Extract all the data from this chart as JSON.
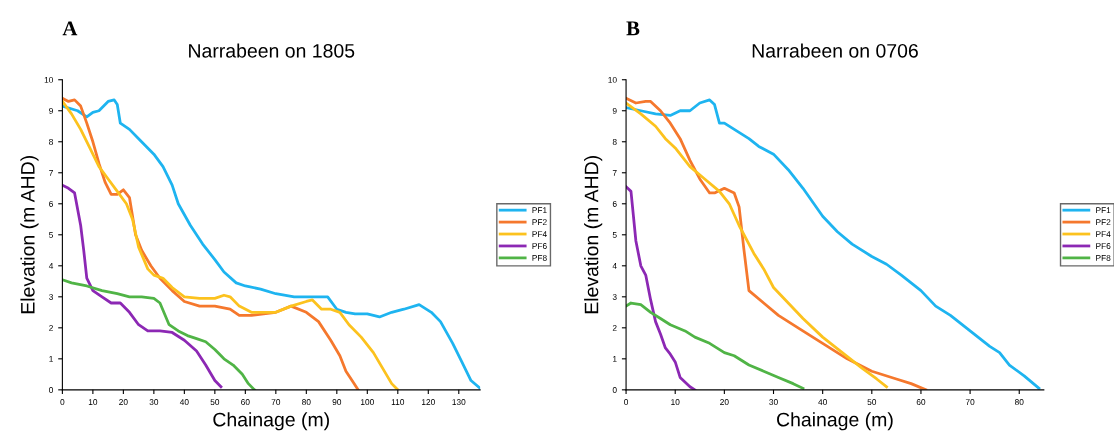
{
  "chart_data": [
    {
      "type": "line",
      "title": "Narrabeen on 1805",
      "xlabel": "Chainage (m)",
      "ylabel": "Elevation (m AHD)",
      "annotations": [
        "A"
      ],
      "legend": "right",
      "grid": false,
      "xlim": [
        0,
        137
      ],
      "xticks": [
        0,
        10,
        20,
        30,
        40,
        50,
        60,
        70,
        80,
        90,
        100,
        110,
        120,
        130
      ],
      "ylim": [
        0,
        10
      ],
      "yticks": [
        0,
        1,
        2,
        3,
        4,
        5,
        6,
        7,
        8,
        9,
        10
      ],
      "series": [
        {
          "name": "PF1",
          "color": "#1eb4f0",
          "x": [
            0,
            5,
            8,
            10,
            12,
            15,
            17,
            18,
            19,
            22,
            25,
            30,
            33,
            36,
            38,
            42,
            46,
            50,
            53,
            57,
            60,
            65,
            70,
            76,
            80,
            85,
            87,
            90,
            93,
            96,
            100,
            104,
            108,
            112,
            117,
            121,
            124,
            128,
            131,
            134,
            137
          ],
          "values": [
            9.15,
            9.0,
            8.8,
            8.95,
            9.0,
            9.3,
            9.35,
            9.2,
            8.6,
            8.4,
            8.1,
            7.6,
            7.2,
            6.6,
            6.0,
            5.3,
            4.7,
            4.2,
            3.8,
            3.45,
            3.35,
            3.25,
            3.1,
            3.0,
            3.0,
            3.0,
            3.0,
            2.6,
            2.5,
            2.45,
            2.45,
            2.35,
            2.5,
            2.6,
            2.75,
            2.5,
            2.2,
            1.5,
            0.9,
            0.3,
            0.05
          ]
        },
        {
          "name": "PF2",
          "color": "#f5782d",
          "x": [
            0,
            2,
            4,
            6,
            8,
            10,
            12,
            14,
            16,
            18,
            20,
            22,
            24,
            26,
            29,
            32,
            36,
            40,
            45,
            50,
            55,
            58,
            62,
            66,
            70,
            75,
            80,
            84,
            88,
            91,
            93,
            95,
            97
          ],
          "values": [
            9.4,
            9.3,
            9.35,
            9.15,
            8.6,
            8.0,
            7.3,
            6.7,
            6.3,
            6.3,
            6.45,
            6.2,
            5.0,
            4.5,
            4.0,
            3.6,
            3.2,
            2.85,
            2.7,
            2.7,
            2.6,
            2.4,
            2.4,
            2.45,
            2.5,
            2.7,
            2.5,
            2.2,
            1.6,
            1.1,
            0.6,
            0.3,
            0.0
          ]
        },
        {
          "name": "PF4",
          "color": "#fcc21e",
          "x": [
            0,
            3,
            6,
            9,
            12,
            15,
            18,
            21,
            23,
            25,
            28,
            30,
            33,
            36,
            40,
            45,
            50,
            53,
            55,
            58,
            62,
            66,
            70,
            75,
            80,
            82,
            85,
            88,
            91,
            94,
            98,
            102,
            105,
            108,
            110
          ],
          "values": [
            9.3,
            8.9,
            8.4,
            7.8,
            7.2,
            6.8,
            6.4,
            6.0,
            5.5,
            4.6,
            3.9,
            3.7,
            3.6,
            3.3,
            3.0,
            2.95,
            2.95,
            3.05,
            3.0,
            2.7,
            2.5,
            2.5,
            2.5,
            2.7,
            2.85,
            2.9,
            2.6,
            2.6,
            2.5,
            2.1,
            1.7,
            1.2,
            0.7,
            0.2,
            0.0
          ]
        },
        {
          "name": "PF6",
          "color": "#8c28b4",
          "x": [
            0,
            2,
            4,
            6,
            7,
            8,
            10,
            13,
            16,
            19,
            22,
            25,
            28,
            32,
            36,
            40,
            44,
            47,
            50,
            52
          ],
          "values": [
            6.6,
            6.5,
            6.35,
            5.3,
            4.5,
            3.6,
            3.2,
            3.0,
            2.8,
            2.8,
            2.5,
            2.1,
            1.9,
            1.9,
            1.85,
            1.6,
            1.25,
            0.8,
            0.3,
            0.1
          ]
        },
        {
          "name": "PF8",
          "color": "#50b446",
          "x": [
            0,
            3,
            8,
            13,
            18,
            22,
            26,
            30,
            32,
            35,
            38,
            41,
            44,
            47,
            50,
            53,
            56,
            59,
            61,
            63
          ],
          "values": [
            3.55,
            3.45,
            3.35,
            3.2,
            3.1,
            3.0,
            3.0,
            2.95,
            2.8,
            2.1,
            1.9,
            1.75,
            1.65,
            1.55,
            1.3,
            1.0,
            0.8,
            0.5,
            0.2,
            0.0
          ]
        }
      ]
    },
    {
      "type": "line",
      "title": "Narrabeen on 0706",
      "xlabel": "Chainage (m)",
      "ylabel": "Elevation (m AHD)",
      "annotations": [
        "B"
      ],
      "legend": "right",
      "grid": false,
      "xlim": [
        0,
        85
      ],
      "xticks": [
        0,
        10,
        20,
        30,
        40,
        50,
        60,
        70,
        80
      ],
      "ylim": [
        0,
        10
      ],
      "yticks": [
        0,
        1,
        2,
        3,
        4,
        5,
        6,
        7,
        8,
        9,
        10
      ],
      "series": [
        {
          "name": "PF1",
          "color": "#1eb4f0",
          "x": [
            0,
            3,
            6,
            9,
            11,
            13,
            15,
            17,
            18,
            19,
            20,
            25,
            27,
            30,
            33,
            36,
            40,
            43,
            46,
            50,
            53,
            56,
            60,
            63,
            66,
            70,
            74,
            76,
            78,
            81,
            84
          ],
          "values": [
            9.1,
            9.0,
            8.9,
            8.85,
            9.0,
            9.0,
            9.25,
            9.35,
            9.2,
            8.6,
            8.6,
            8.1,
            7.85,
            7.6,
            7.1,
            6.5,
            5.6,
            5.1,
            4.7,
            4.3,
            4.05,
            3.7,
            3.2,
            2.7,
            2.4,
            1.9,
            1.4,
            1.2,
            0.8,
            0.45,
            0.05
          ]
        },
        {
          "name": "PF2",
          "color": "#f5782d",
          "x": [
            0,
            2,
            4,
            5,
            7,
            9,
            11,
            13,
            15,
            17,
            18,
            20,
            22,
            23,
            24,
            25,
            28,
            31,
            35,
            40,
            45,
            50,
            55,
            58,
            61
          ],
          "values": [
            9.4,
            9.25,
            9.3,
            9.3,
            9.0,
            8.6,
            8.1,
            7.4,
            6.8,
            6.35,
            6.35,
            6.5,
            6.35,
            5.9,
            4.5,
            3.2,
            2.8,
            2.4,
            2.0,
            1.5,
            1.0,
            0.6,
            0.35,
            0.2,
            0.0
          ]
        },
        {
          "name": "PF4",
          "color": "#fcc21e",
          "x": [
            0,
            3,
            6,
            8,
            10,
            13,
            16,
            19,
            21,
            23,
            26,
            28,
            30,
            33,
            36,
            40,
            44,
            48,
            51,
            53
          ],
          "values": [
            9.25,
            8.9,
            8.5,
            8.1,
            7.8,
            7.2,
            6.8,
            6.4,
            6.0,
            5.3,
            4.4,
            3.9,
            3.3,
            2.8,
            2.3,
            1.7,
            1.2,
            0.7,
            0.35,
            0.1
          ]
        },
        {
          "name": "PF6",
          "color": "#8c28b4",
          "x": [
            0,
            1,
            2,
            3,
            4,
            5,
            6,
            7,
            8,
            9,
            10,
            11,
            13,
            14
          ],
          "values": [
            6.55,
            6.4,
            4.8,
            4.0,
            3.7,
            2.9,
            2.2,
            1.8,
            1.35,
            1.15,
            0.9,
            0.4,
            0.1,
            0.0
          ]
        },
        {
          "name": "PF8",
          "color": "#50b446",
          "x": [
            0,
            1,
            3,
            5,
            7,
            9,
            12,
            14,
            17,
            20,
            22,
            25,
            28,
            31,
            34,
            36
          ],
          "values": [
            2.7,
            2.8,
            2.75,
            2.5,
            2.3,
            2.1,
            1.9,
            1.7,
            1.5,
            1.2,
            1.1,
            0.8,
            0.6,
            0.4,
            0.2,
            0.05
          ]
        }
      ]
    }
  ]
}
